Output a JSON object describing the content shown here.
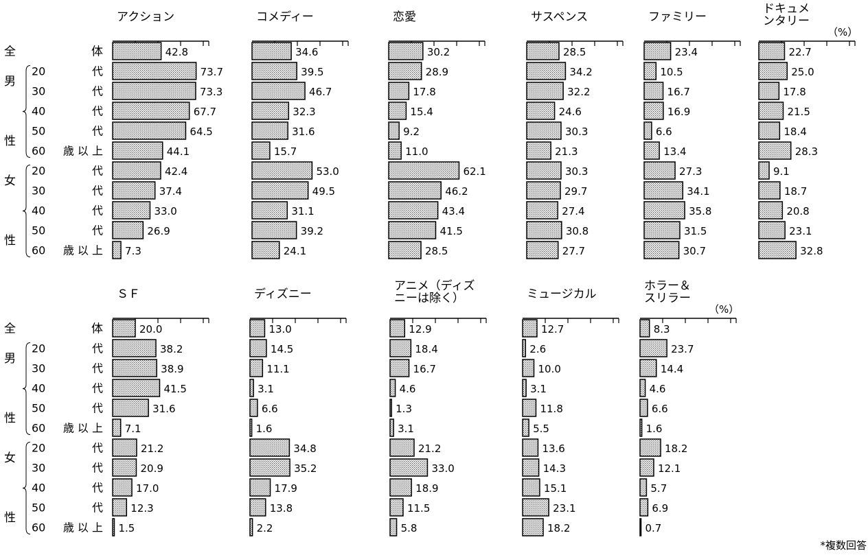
{
  "row_labels": {
    "all_left": "全",
    "all_right": "体",
    "male_top": "男",
    "male_bottom": "性",
    "female_top": "女",
    "female_bottom": "性",
    "rows": [
      {
        "age": "",
        "suffix": ""
      },
      {
        "age": "20",
        "suffix": "代"
      },
      {
        "age": "30",
        "suffix": "代"
      },
      {
        "age": "40",
        "suffix": "代"
      },
      {
        "age": "50",
        "suffix": "代"
      },
      {
        "age": "60",
        "suffix": "歳 以 上"
      },
      {
        "age": "20",
        "suffix": "代"
      },
      {
        "age": "30",
        "suffix": "代"
      },
      {
        "age": "40",
        "suffix": "代"
      },
      {
        "age": "50",
        "suffix": "代"
      },
      {
        "age": "60",
        "suffix": "歳 以 上"
      }
    ]
  },
  "percent_unit": "（%）",
  "footnote": "*複数回答",
  "chart_data": [
    {
      "type": "bar",
      "title": [
        "アクション"
      ],
      "values": [
        42.8,
        73.7,
        73.3,
        67.7,
        64.5,
        44.1,
        42.4,
        37.4,
        33.0,
        26.9,
        7.3
      ]
    },
    {
      "type": "bar",
      "title": [
        "コメディー"
      ],
      "values": [
        34.6,
        39.5,
        46.7,
        32.3,
        31.6,
        15.7,
        53.0,
        49.5,
        31.1,
        39.2,
        24.1
      ]
    },
    {
      "type": "bar",
      "title": [
        "恋愛"
      ],
      "values": [
        30.2,
        28.9,
        17.8,
        15.4,
        9.2,
        11.0,
        62.1,
        46.2,
        43.4,
        41.5,
        28.5
      ]
    },
    {
      "type": "bar",
      "title": [
        "サスペンス"
      ],
      "values": [
        28.5,
        34.2,
        32.2,
        24.6,
        30.3,
        21.3,
        30.3,
        29.7,
        27.4,
        30.8,
        27.7
      ]
    },
    {
      "type": "bar",
      "title": [
        "ファミリー"
      ],
      "values": [
        23.4,
        10.5,
        16.7,
        16.9,
        6.6,
        13.4,
        27.3,
        34.1,
        35.8,
        31.5,
        30.7
      ]
    },
    {
      "type": "bar",
      "title": [
        "ドキュメ",
        "ンタリー"
      ],
      "values": [
        22.7,
        25.0,
        17.8,
        21.5,
        18.4,
        28.3,
        9.1,
        18.7,
        20.8,
        23.1,
        32.8
      ]
    },
    {
      "type": "bar",
      "title": [
        "ＳＦ"
      ],
      "values": [
        20.0,
        38.2,
        38.9,
        41.5,
        31.6,
        7.1,
        21.2,
        20.9,
        17.0,
        12.3,
        1.5
      ]
    },
    {
      "type": "bar",
      "title": [
        "ディズニー"
      ],
      "values": [
        13.0,
        14.5,
        11.1,
        3.1,
        6.6,
        1.6,
        34.8,
        35.2,
        17.9,
        13.8,
        2.2
      ]
    },
    {
      "type": "bar",
      "title": [
        "アニメ（ディズ",
        "ニーは除く）"
      ],
      "values": [
        12.9,
        18.4,
        16.7,
        4.6,
        1.3,
        3.1,
        21.2,
        33.0,
        18.9,
        11.5,
        5.8
      ]
    },
    {
      "type": "bar",
      "title": [
        "ミュージカル"
      ],
      "values": [
        12.7,
        2.6,
        10.0,
        3.1,
        11.8,
        5.5,
        13.6,
        14.3,
        15.1,
        23.1,
        18.2
      ]
    },
    {
      "type": "bar",
      "title": [
        "ホラー＆",
        "スリラー"
      ],
      "values": [
        8.3,
        23.7,
        14.4,
        4.6,
        6.6,
        1.6,
        18.2,
        12.1,
        5.7,
        6.9,
        0.7
      ]
    }
  ]
}
